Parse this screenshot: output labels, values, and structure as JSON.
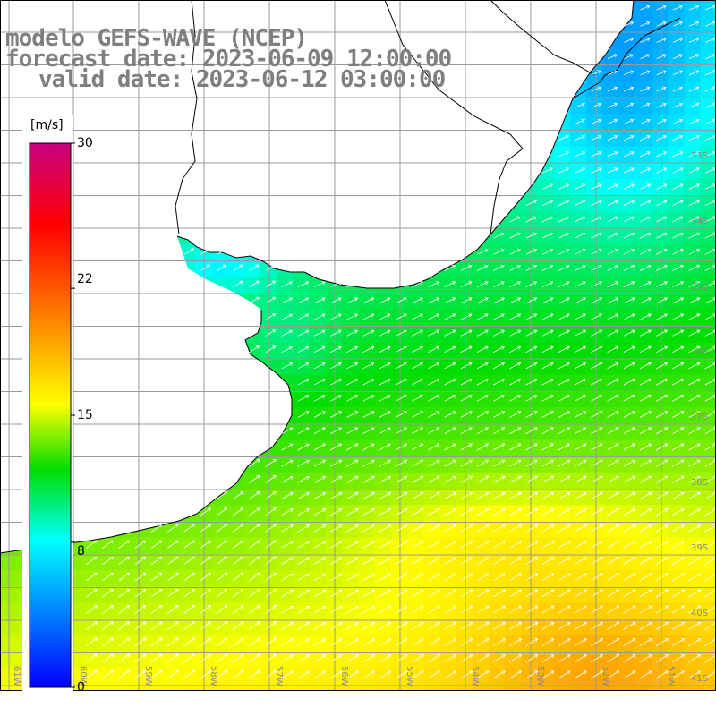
{
  "title": {
    "model": "modelo GEFS-WAVE (NCEP)",
    "forecast": "forecast date: 2023-06-09 12:00:00",
    "valid": "valid date: 2023-06-12 03:00:00"
  },
  "colorbar": {
    "unit": "[m/s]",
    "min": 0,
    "max": 30,
    "tick_labels": [
      "30",
      "22",
      "15",
      "8",
      "0"
    ],
    "tick_values": [
      30,
      22,
      15,
      8,
      0
    ],
    "colors": [
      "#0000ff",
      "#00ffff",
      "#00ff00",
      "#ffff00",
      "#ff8000",
      "#ff0000",
      "#cc0080"
    ]
  },
  "map": {
    "lon_labels": [
      "61W",
      "60W",
      "59W",
      "58W",
      "57W",
      "56W",
      "55W",
      "54W",
      "53W",
      "52W",
      "51W"
    ],
    "lat_labels": [
      "33S",
      "34S",
      "35S",
      "36S",
      "37S",
      "38S",
      "39S",
      "40S",
      "41S"
    ],
    "field_description_colors": {
      "land": "#ffffff",
      "coast": "#000000",
      "grid": "#999999",
      "arrows": "#ffffff"
    }
  }
}
